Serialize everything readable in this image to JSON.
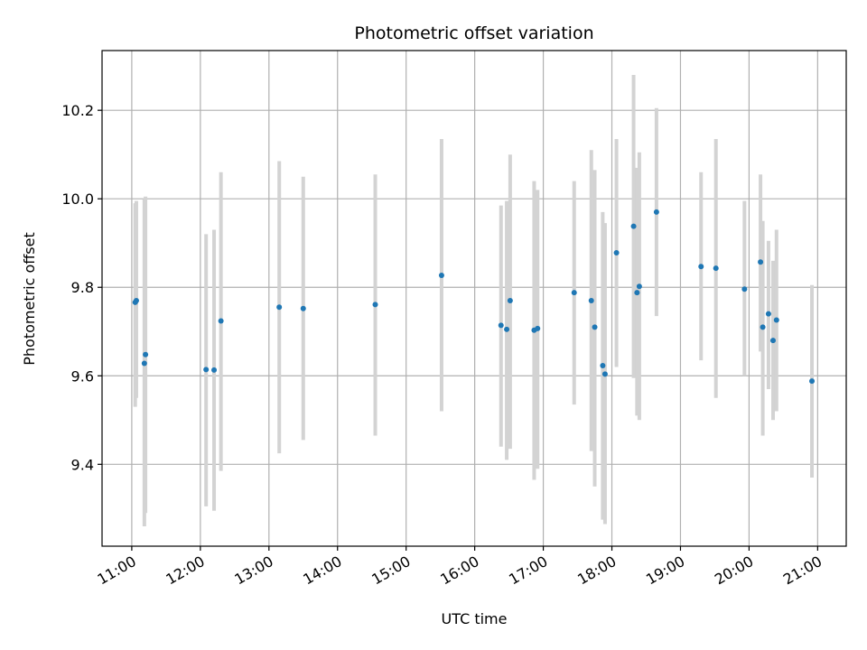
{
  "chart_data": {
    "type": "scatter",
    "title": "Photometric offset variation",
    "xlabel": "UTC time",
    "ylabel": "Photometric offset",
    "xlim": [
      "10:34",
      "21:25"
    ],
    "ylim": [
      9.215,
      10.335
    ],
    "xticks": [
      "11:00",
      "12:00",
      "13:00",
      "14:00",
      "15:00",
      "16:00",
      "17:00",
      "18:00",
      "19:00",
      "20:00",
      "21:00"
    ],
    "yticks": [
      "9.4",
      "9.6",
      "9.8",
      "10.0",
      "10.2"
    ],
    "grid": true,
    "legend": "none",
    "colors": {
      "marker": "#1f77b4",
      "errorbar": "#d3d3d3",
      "grid": "#b0b0b0"
    },
    "points": [
      {
        "x": "11:03",
        "y": 9.766,
        "lo": 9.53,
        "hi": 9.99
      },
      {
        "x": "11:04",
        "y": 9.77,
        "lo": 9.55,
        "hi": 9.995
      },
      {
        "x": "11:11",
        "y": 9.628,
        "lo": 9.26,
        "hi": 10.0
      },
      {
        "x": "11:12",
        "y": 9.648,
        "lo": 9.29,
        "hi": 10.005
      },
      {
        "x": "12:05",
        "y": 9.614,
        "lo": 9.305,
        "hi": 9.92
      },
      {
        "x": "12:12",
        "y": 9.613,
        "lo": 9.295,
        "hi": 9.93
      },
      {
        "x": "12:18",
        "y": 9.724,
        "lo": 9.385,
        "hi": 10.06
      },
      {
        "x": "13:09",
        "y": 9.755,
        "lo": 9.425,
        "hi": 10.085
      },
      {
        "x": "13:30",
        "y": 9.752,
        "lo": 9.455,
        "hi": 10.05
      },
      {
        "x": "14:33",
        "y": 9.761,
        "lo": 9.465,
        "hi": 10.055
      },
      {
        "x": "15:31",
        "y": 9.827,
        "lo": 9.52,
        "hi": 10.135
      },
      {
        "x": "16:23",
        "y": 9.714,
        "lo": 9.44,
        "hi": 9.985
      },
      {
        "x": "16:28",
        "y": 9.705,
        "lo": 9.41,
        "hi": 9.995
      },
      {
        "x": "16:31",
        "y": 9.77,
        "lo": 9.435,
        "hi": 10.1
      },
      {
        "x": "16:52",
        "y": 9.703,
        "lo": 9.365,
        "hi": 10.04
      },
      {
        "x": "16:55",
        "y": 9.707,
        "lo": 9.39,
        "hi": 10.02
      },
      {
        "x": "17:27",
        "y": 9.788,
        "lo": 9.535,
        "hi": 10.04
      },
      {
        "x": "17:42",
        "y": 9.77,
        "lo": 9.43,
        "hi": 10.11
      },
      {
        "x": "17:45",
        "y": 9.71,
        "lo": 9.35,
        "hi": 10.065
      },
      {
        "x": "17:52",
        "y": 9.623,
        "lo": 9.275,
        "hi": 9.97
      },
      {
        "x": "17:54",
        "y": 9.604,
        "lo": 9.265,
        "hi": 9.945
      },
      {
        "x": "18:04",
        "y": 9.878,
        "lo": 9.62,
        "hi": 10.135
      },
      {
        "x": "18:19",
        "y": 9.938,
        "lo": 9.595,
        "hi": 10.28
      },
      {
        "x": "18:22",
        "y": 9.788,
        "lo": 9.51,
        "hi": 10.07
      },
      {
        "x": "18:24",
        "y": 9.802,
        "lo": 9.5,
        "hi": 10.105
      },
      {
        "x": "18:39",
        "y": 9.97,
        "lo": 9.735,
        "hi": 10.205
      },
      {
        "x": "19:18",
        "y": 9.847,
        "lo": 9.635,
        "hi": 10.06
      },
      {
        "x": "19:31",
        "y": 9.843,
        "lo": 9.55,
        "hi": 10.135
      },
      {
        "x": "19:56",
        "y": 9.796,
        "lo": 9.6,
        "hi": 9.995
      },
      {
        "x": "20:10",
        "y": 9.857,
        "lo": 9.655,
        "hi": 10.055
      },
      {
        "x": "20:12",
        "y": 9.71,
        "lo": 9.465,
        "hi": 9.95
      },
      {
        "x": "20:17",
        "y": 9.74,
        "lo": 9.57,
        "hi": 9.905
      },
      {
        "x": "20:21",
        "y": 9.68,
        "lo": 9.5,
        "hi": 9.86
      },
      {
        "x": "20:24",
        "y": 9.726,
        "lo": 9.52,
        "hi": 9.93
      },
      {
        "x": "20:55",
        "y": 9.588,
        "lo": 9.37,
        "hi": 9.805
      }
    ]
  }
}
